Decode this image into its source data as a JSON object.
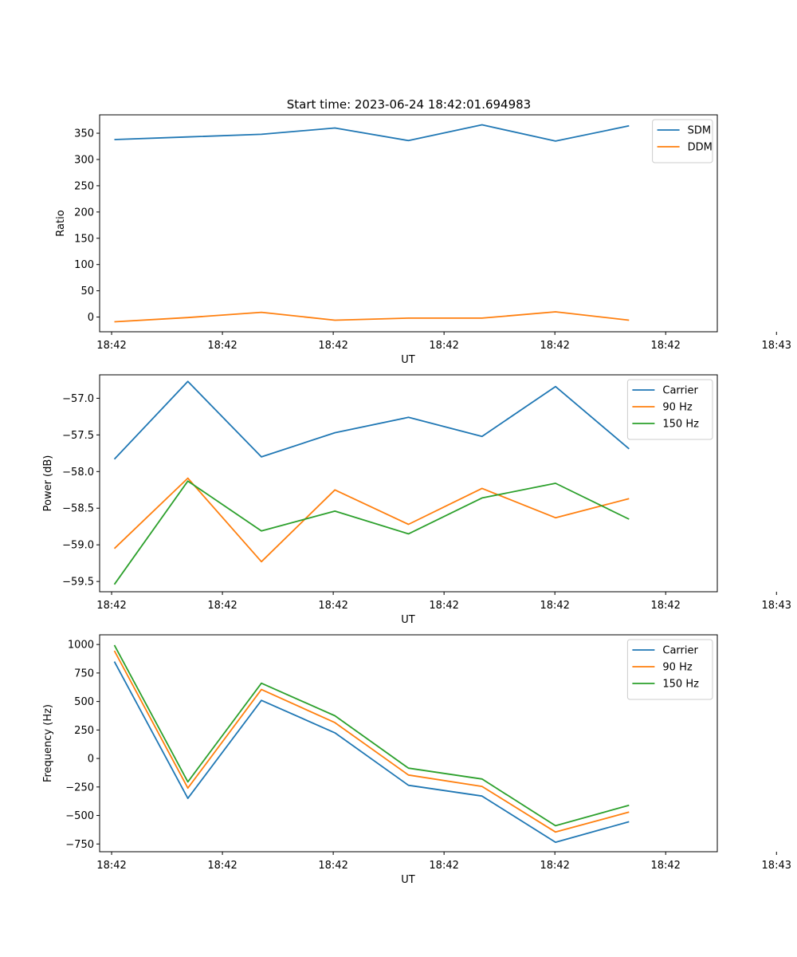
{
  "figure": {
    "title": "Start time: 2023-06-24 18:42:01.694983"
  },
  "chart_data": [
    {
      "type": "line",
      "xlabel": "UT",
      "ylabel": "Ratio",
      "x_tick_labels": [
        "18:42",
        "18:42",
        "18:42",
        "18:42",
        "18:42",
        "18:42",
        "18:43"
      ],
      "x": [
        1,
        2,
        3,
        4,
        5,
        6,
        7,
        8
      ],
      "xlim": [
        0.8,
        9.2
      ],
      "ylim": [
        -28,
        385
      ],
      "y_ticks": [
        0,
        50,
        100,
        150,
        200,
        250,
        300,
        350
      ],
      "y_tick_labels": [
        "0",
        "50",
        "100",
        "150",
        "200",
        "250",
        "300",
        "350"
      ],
      "legend_position": "upper-right",
      "grid": false,
      "series": [
        {
          "name": "SDM",
          "color": "#1f77b4",
          "values": [
            338,
            343,
            348,
            360,
            336,
            366,
            335,
            364
          ]
        },
        {
          "name": "DDM",
          "color": "#ff7f0e",
          "values": [
            -9,
            -1,
            9,
            -6,
            -2,
            -2,
            10,
            -6
          ]
        }
      ]
    },
    {
      "type": "line",
      "xlabel": "UT",
      "ylabel": "Power (dB)",
      "x_tick_labels": [
        "18:42",
        "18:42",
        "18:42",
        "18:42",
        "18:42",
        "18:42",
        "18:43"
      ],
      "x": [
        1,
        2,
        3,
        4,
        5,
        6,
        7,
        8
      ],
      "xlim": [
        0.8,
        9.2
      ],
      "ylim": [
        -59.64,
        -56.68
      ],
      "y_ticks": [
        -59.5,
        -59.0,
        -58.5,
        -58.0,
        -57.5,
        -57.0
      ],
      "y_tick_labels": [
        "−59.5",
        "−59.0",
        "−58.5",
        "−58.0",
        "−57.5",
        "−57.0"
      ],
      "legend_position": "upper-right",
      "grid": false,
      "series": [
        {
          "name": "Carrier",
          "color": "#1f77b4",
          "values": [
            -57.83,
            -56.77,
            -57.8,
            -57.47,
            -57.26,
            -57.52,
            -56.84,
            -57.69
          ]
        },
        {
          "name": "90 Hz",
          "color": "#ff7f0e",
          "values": [
            -59.05,
            -58.09,
            -59.23,
            -58.25,
            -58.72,
            -58.23,
            -58.63,
            -58.37
          ]
        },
        {
          "name": "150 Hz",
          "color": "#2ca02c",
          "values": [
            -59.54,
            -58.13,
            -58.81,
            -58.54,
            -58.85,
            -58.36,
            -58.16,
            -58.65
          ]
        }
      ]
    },
    {
      "type": "line",
      "xlabel": "UT",
      "ylabel": "Frequency (Hz)",
      "x_tick_labels": [
        "18:42",
        "18:42",
        "18:42",
        "18:42",
        "18:42",
        "18:42",
        "18:43"
      ],
      "x": [
        1,
        2,
        3,
        4,
        5,
        6,
        7,
        8
      ],
      "xlim": [
        0.8,
        9.2
      ],
      "ylim": [
        -818,
        1085
      ],
      "y_ticks": [
        -750,
        -500,
        -250,
        0,
        250,
        500,
        750,
        1000
      ],
      "y_tick_labels": [
        "−750",
        "−500",
        "−250",
        "0",
        "250",
        "500",
        "750",
        "1000"
      ],
      "legend_position": "upper-right",
      "grid": false,
      "series": [
        {
          "name": "Carrier",
          "color": "#1f77b4",
          "values": [
            850,
            -350,
            510,
            225,
            -235,
            -330,
            -735,
            -555
          ]
        },
        {
          "name": "90 Hz",
          "color": "#ff7f0e",
          "values": [
            945,
            -260,
            605,
            315,
            -145,
            -245,
            -645,
            -470
          ]
        },
        {
          "name": "150 Hz",
          "color": "#2ca02c",
          "values": [
            995,
            -205,
            660,
            375,
            -85,
            -180,
            -590,
            -410
          ]
        }
      ]
    }
  ]
}
